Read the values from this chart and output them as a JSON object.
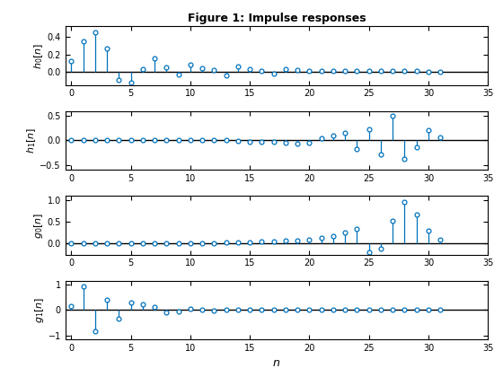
{
  "title": "Figure 1: Impulse responses",
  "xlim": [
    -0.5,
    35
  ],
  "xlabel": "n",
  "line_color": "#0072BD",
  "background_color": "#ffffff",
  "n_total": 32,
  "subplots": [
    {
      "ylabel": "h_0[n]",
      "ylim": [
        -0.15,
        0.52
      ],
      "yticks": [
        0.0,
        0.2,
        0.4
      ],
      "values": [
        0.12,
        0.35,
        0.45,
        0.27,
        -0.09,
        -0.12,
        0.03,
        0.15,
        0.05,
        -0.03,
        0.08,
        0.04,
        0.02,
        -0.04,
        0.06,
        0.03,
        0.01,
        -0.02,
        0.03,
        0.02,
        0.01,
        0.01,
        0.01,
        0.01,
        0.01,
        0.005,
        0.005,
        0.005,
        0.005,
        0.005,
        0.002,
        0.001
      ]
    },
    {
      "ylabel": "h_1[n]",
      "ylim": [
        -0.6,
        0.6
      ],
      "yticks": [
        -0.5,
        0.0,
        0.5
      ],
      "values": [
        0.0,
        0.0,
        0.0,
        0.0,
        0.0,
        0.0,
        0.0,
        0.0,
        0.0,
        0.0,
        0.0,
        0.0,
        0.0,
        0.0,
        -0.01,
        -0.02,
        -0.02,
        -0.03,
        -0.05,
        -0.06,
        -0.05,
        0.04,
        0.1,
        0.15,
        -0.17,
        0.23,
        -0.28,
        0.5,
        -0.38,
        -0.13,
        0.22,
        0.06
      ]
    },
    {
      "ylabel": "g_0[n]",
      "ylim": [
        -0.25,
        1.1
      ],
      "yticks": [
        0.0,
        0.5,
        1.0
      ],
      "values": [
        0.0,
        0.0,
        0.0,
        0.0,
        0.0,
        0.0,
        0.0,
        0.0,
        0.0,
        0.0,
        0.0,
        0.0,
        0.0,
        0.03,
        0.02,
        0.04,
        0.05,
        0.06,
        0.07,
        0.08,
        0.1,
        0.14,
        0.18,
        0.25,
        0.35,
        -0.2,
        -0.12,
        0.52,
        0.97,
        0.67,
        0.3,
        0.1
      ]
    },
    {
      "ylabel": "g_1[n]",
      "ylim": [
        -1.15,
        1.15
      ],
      "yticks": [
        -1.0,
        0.0,
        1.0
      ],
      "values": [
        0.15,
        0.92,
        -0.82,
        0.4,
        -0.35,
        0.3,
        0.22,
        0.12,
        -0.1,
        -0.06,
        0.05,
        0.03,
        -0.03,
        0.02,
        0.0,
        0.0,
        0.0,
        0.0,
        0.0,
        0.0,
        0.0,
        0.0,
        0.0,
        0.0,
        0.0,
        0.0,
        0.0,
        0.0,
        0.0,
        0.0,
        0.0,
        0.0
      ]
    }
  ]
}
